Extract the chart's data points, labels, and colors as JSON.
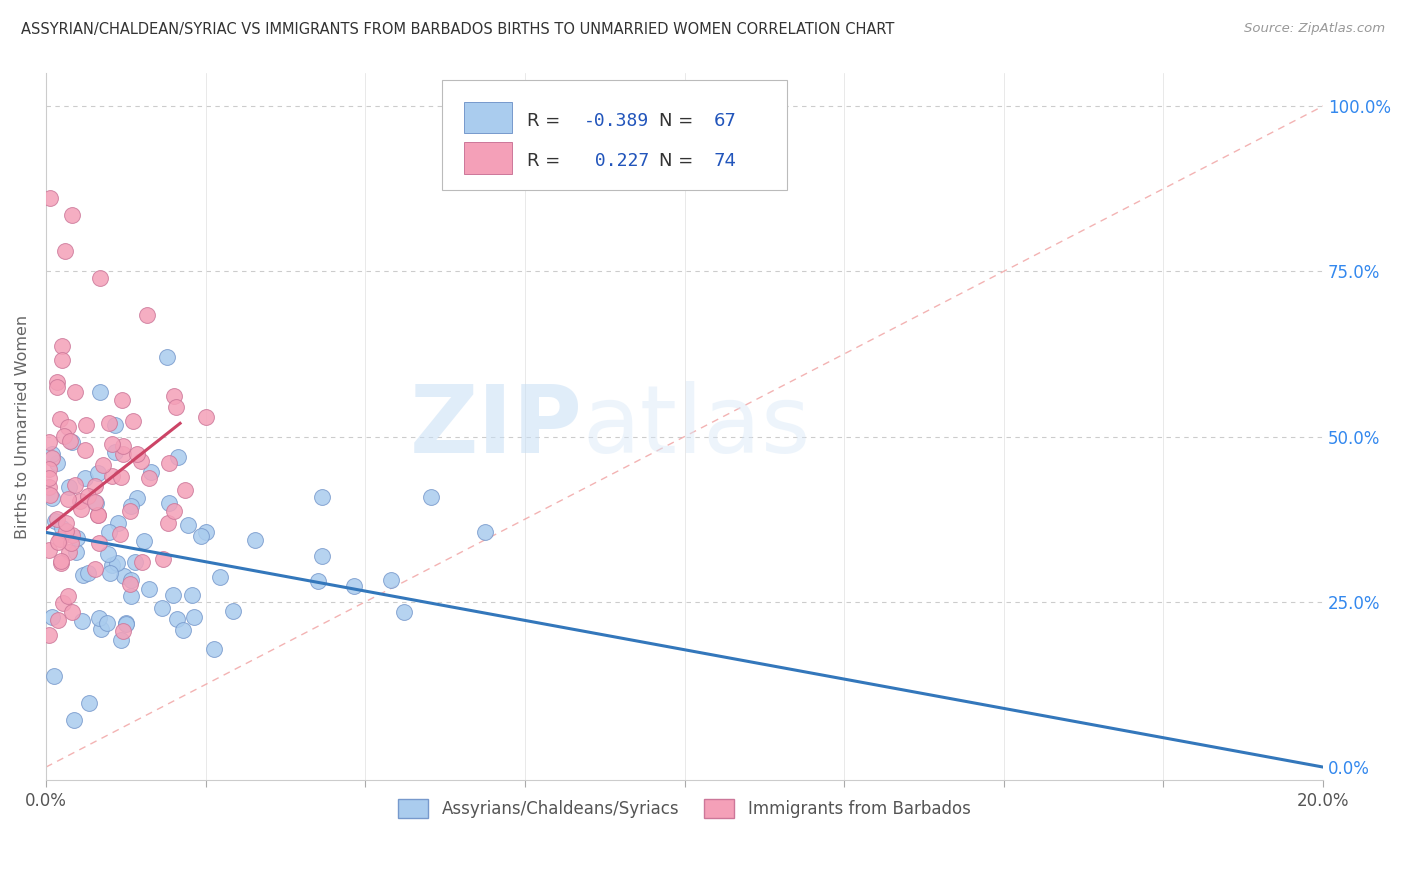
{
  "title": "ASSYRIAN/CHALDEAN/SYRIAC VS IMMIGRANTS FROM BARBADOS BIRTHS TO UNMARRIED WOMEN CORRELATION CHART",
  "source": "Source: ZipAtlas.com",
  "ylabel": "Births to Unmarried Women",
  "ylabel_right_ticks": [
    "100.0%",
    "75.0%",
    "50.0%",
    "25.0%",
    "0.0%"
  ],
  "ylabel_right_vals": [
    1.0,
    0.75,
    0.5,
    0.25,
    0.0
  ],
  "legend_label_blue": "Assyrians/Chaldeans/Syriacs",
  "legend_label_pink": "Immigrants from Barbados",
  "R_blue": -0.389,
  "N_blue": 67,
  "R_pink": 0.227,
  "N_pink": 74,
  "blue_color": "#aaccee",
  "blue_line_color": "#3377bb",
  "pink_color": "#f4a0b8",
  "pink_line_color": "#cc4466",
  "background": "#ffffff",
  "grid_color": "#cccccc",
  "xmin": 0.0,
  "xmax": 0.2,
  "ymin": -0.02,
  "ymax": 1.05,
  "blue_trend_x": [
    0.0,
    0.2
  ],
  "blue_trend_y": [
    0.355,
    0.0
  ],
  "pink_trend_x": [
    0.0,
    0.021
  ],
  "pink_trend_y": [
    0.36,
    0.52
  ],
  "diag_line_x": [
    0.0,
    0.2
  ],
  "diag_line_y": [
    0.0,
    1.0
  ],
  "watermark_zip": "ZIP",
  "watermark_atlas": "atlas"
}
